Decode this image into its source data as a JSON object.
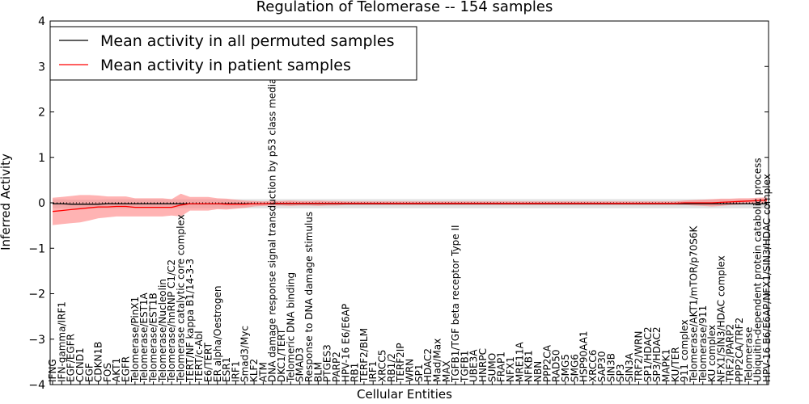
{
  "chart_data": {
    "type": "line",
    "title": "Regulation of Telomerase -- 154 samples",
    "xlabel": "Cellular Entities",
    "ylabel": "Inferred Activity",
    "ylim": [
      -4,
      4
    ],
    "yticks": [
      -4,
      -3,
      -2,
      -1,
      0,
      1,
      2,
      3,
      4
    ],
    "ytick_labels": [
      "−4",
      "−3",
      "−2",
      "−1",
      "0",
      "1",
      "2",
      "3",
      "4"
    ],
    "legend": {
      "placement": "top-left",
      "entries": [
        {
          "label": "Mean activity in all permuted samples",
          "color": "#000000"
        },
        {
          "label": "Mean activity in patient samples",
          "color": "#ff0000"
        }
      ]
    },
    "categories": [
      "IFNG",
      "IFN-gamma/IRF1",
      "EGF/EGFR",
      "CCND1",
      "EGF",
      "CDKN1B",
      "FOS",
      "AKT1",
      "EGFR",
      "Telomerase/PinX1",
      "Telomerase/EST1A",
      "Telomerase/EST1B",
      "Telomerase/Nucleolin",
      "Telomerase/hnRNP C1/C2",
      "Telomerase catalytic core complex",
      "TERT/NF kappa B1/14-3-3",
      "TERT/c-Abl",
      "E6/TERT",
      "ER alpha/Oestrogen",
      "ESR1",
      "IRF1",
      "Smad3/Myc",
      "KLF2",
      "ATM",
      "DNA damage response signal transduction by p53 class mediator",
      "DKC1/TERT",
      "Telomeric DNA binding",
      "SMAD3",
      "Response to DNA damage stimulus",
      "BLM",
      "PTGES3",
      "PARP2",
      "HPV-16 E6/E6AP",
      "RB1",
      "TERF2/BLM",
      "IRF1",
      "XRCC5",
      "RB1/2",
      "TERF2IP",
      "WRN",
      "SP1",
      "HDAC2",
      "Mad/Max",
      "MAX",
      "TGFB1/TGF beta receptor Type II",
      "TGFB1",
      "UBE3A",
      "HNRPC",
      "SUMO",
      "FRAP1",
      "NFX1",
      "MRE11A",
      "NFKB1",
      "NBN",
      "PPP2CA",
      "RAD50",
      "SMG5",
      "SMG6",
      "HSP90AA1",
      "XRCC6",
      "SAP30",
      "SIN3B",
      "SP3",
      "SIN3A",
      "TRF2/WRN",
      "SP1/HDAC2",
      "SP3/HDAC2",
      "MAPK1",
      "KU/TER",
      "911 complex",
      "Telomerase/AKT1/mTOR/p70S6K",
      "Telomerase/911",
      "KU complex",
      "NFX1/SIN3/HDAC complex",
      "TRF2/PARP2",
      "PPP2CA/TRF2",
      "Telomerase",
      "Ubiquitin-dependent protein catabolic process",
      "HPV-16 E6/E6AP/NFX1/SIN3/HDAC complex"
    ],
    "series": [
      {
        "name": "Mean activity in all permuted samples",
        "color": "#000000",
        "values": [
          -0.02,
          -0.02,
          -0.03,
          -0.03,
          -0.03,
          -0.03,
          -0.02,
          -0.02,
          -0.02,
          -0.02,
          -0.02,
          -0.02,
          -0.02,
          -0.02,
          -0.02,
          -0.02,
          -0.02,
          -0.02,
          -0.02,
          -0.02,
          -0.02,
          -0.02,
          -0.02,
          -0.02,
          -0.02,
          -0.02,
          -0.02,
          -0.02,
          -0.02,
          -0.02,
          -0.02,
          -0.02,
          -0.02,
          -0.02,
          -0.02,
          -0.02,
          -0.02,
          -0.02,
          -0.02,
          -0.02,
          -0.02,
          -0.02,
          -0.02,
          -0.02,
          -0.02,
          -0.02,
          -0.02,
          -0.02,
          -0.02,
          -0.02,
          -0.02,
          -0.02,
          -0.02,
          -0.02,
          -0.02,
          -0.02,
          -0.02,
          -0.02,
          -0.02,
          -0.02,
          -0.02,
          -0.02,
          -0.02,
          -0.02,
          -0.02,
          -0.02,
          -0.02,
          -0.02,
          -0.02,
          -0.02,
          -0.02,
          -0.02,
          -0.02,
          -0.02,
          -0.02,
          -0.02,
          -0.02,
          -0.02,
          -0.02
        ],
        "band": [
          0.1,
          0.1,
          0.1,
          0.1,
          0.1,
          0.1,
          0.1,
          0.1,
          0.1,
          0.1,
          0.1,
          0.1,
          0.1,
          0.1,
          0.1,
          0.1,
          0.1,
          0.1,
          0.1,
          0.1,
          0.1,
          0.1,
          0.1,
          0.1,
          0.1,
          0.1,
          0.1,
          0.1,
          0.1,
          0.1,
          0.1,
          0.1,
          0.1,
          0.1,
          0.1,
          0.1,
          0.1,
          0.1,
          0.1,
          0.1,
          0.1,
          0.1,
          0.1,
          0.1,
          0.1,
          0.1,
          0.1,
          0.1,
          0.1,
          0.1,
          0.1,
          0.1,
          0.1,
          0.1,
          0.1,
          0.1,
          0.1,
          0.1,
          0.1,
          0.1,
          0.1,
          0.1,
          0.1,
          0.1,
          0.1,
          0.1,
          0.1,
          0.1,
          0.1,
          0.1,
          0.1,
          0.1,
          0.1,
          0.1,
          0.1,
          0.1,
          0.1,
          0.1,
          0.1
        ]
      },
      {
        "name": "Mean activity in patient samples",
        "color": "#ff0000",
        "values": [
          -0.19,
          -0.17,
          -0.15,
          -0.13,
          -0.11,
          -0.09,
          -0.09,
          -0.08,
          -0.08,
          -0.1,
          -0.1,
          -0.1,
          -0.1,
          -0.1,
          -0.05,
          -0.02,
          -0.02,
          -0.02,
          -0.02,
          -0.03,
          -0.03,
          -0.03,
          -0.02,
          -0.02,
          -0.01,
          -0.01,
          -0.01,
          -0.01,
          -0.01,
          -0.01,
          -0.01,
          -0.01,
          -0.01,
          -0.01,
          -0.01,
          -0.01,
          -0.01,
          -0.01,
          -0.01,
          -0.01,
          -0.01,
          -0.01,
          -0.01,
          -0.01,
          -0.01,
          -0.01,
          -0.01,
          -0.01,
          -0.01,
          -0.01,
          -0.01,
          -0.01,
          -0.01,
          -0.01,
          -0.01,
          -0.01,
          -0.01,
          -0.01,
          -0.01,
          -0.01,
          -0.01,
          -0.01,
          -0.01,
          -0.01,
          -0.01,
          -0.01,
          -0.01,
          -0.01,
          -0.01,
          0.0,
          0.0,
          0.0,
          0.0,
          0.01,
          0.02,
          0.03,
          0.04,
          0.05,
          0.06
        ],
        "band": [
          0.3,
          0.3,
          0.3,
          0.3,
          0.28,
          0.25,
          0.23,
          0.22,
          0.22,
          0.2,
          0.2,
          0.2,
          0.2,
          0.18,
          0.25,
          0.15,
          0.15,
          0.15,
          0.12,
          0.12,
          0.1,
          0.08,
          0.06,
          0.05,
          0.05,
          0.05,
          0.06,
          0.05,
          0.05,
          0.06,
          0.05,
          0.05,
          0.04,
          0.04,
          0.04,
          0.04,
          0.04,
          0.04,
          0.04,
          0.04,
          0.04,
          0.04,
          0.04,
          0.04,
          0.04,
          0.04,
          0.04,
          0.04,
          0.04,
          0.04,
          0.04,
          0.04,
          0.04,
          0.04,
          0.04,
          0.04,
          0.04,
          0.04,
          0.04,
          0.04,
          0.04,
          0.04,
          0.04,
          0.04,
          0.04,
          0.04,
          0.04,
          0.04,
          0.04,
          0.05,
          0.06,
          0.07,
          0.08,
          0.08,
          0.07,
          0.07,
          0.06,
          0.06,
          0.06
        ]
      }
    ]
  }
}
